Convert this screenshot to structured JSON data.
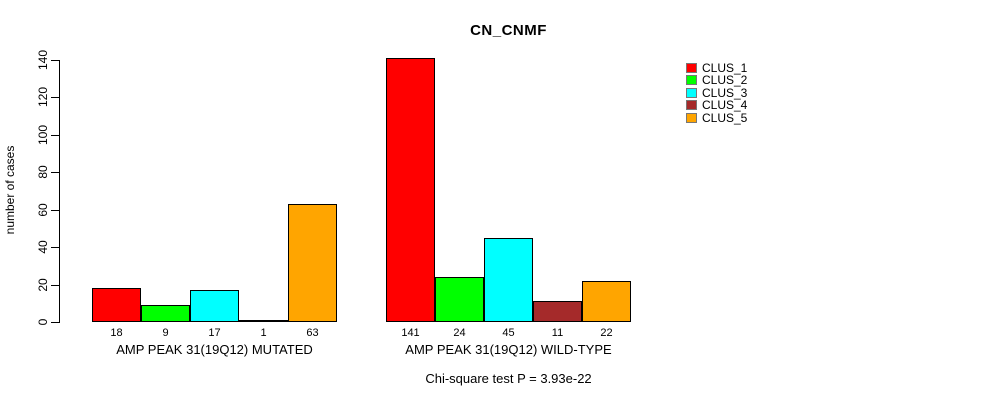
{
  "figure": {
    "title": "CN_CNMF",
    "y_axis_label": "number of cases",
    "annotation": "Chi-square test P = 3.93e-22"
  },
  "chart_data": {
    "type": "bar",
    "title": "CN_CNMF",
    "xlabel": "",
    "ylabel": "number of cases",
    "ylim": [
      0,
      140
    ],
    "yticks": [
      0,
      20,
      40,
      60,
      80,
      100,
      120,
      140
    ],
    "grid": false,
    "legend_position": "top-right",
    "bar_outline_color": "#000000",
    "categories": [
      "AMP PEAK 31(19Q12) MUTATED",
      "AMP PEAK 31(19Q12) WILD-TYPE"
    ],
    "series": [
      {
        "name": "CLUS_1",
        "color": "#FF0000",
        "values": [
          18,
          141
        ]
      },
      {
        "name": "CLUS_2",
        "color": "#00FF00",
        "values": [
          9,
          24
        ]
      },
      {
        "name": "CLUS_3",
        "color": "#00FFFF",
        "values": [
          17,
          45
        ]
      },
      {
        "name": "CLUS_4",
        "color": "#A52A2A",
        "values": [
          1,
          11
        ]
      },
      {
        "name": "CLUS_5",
        "color": "#FFA500",
        "values": [
          63,
          22
        ]
      }
    ],
    "bar_value_labels": [
      [
        18,
        9,
        17,
        1,
        63
      ],
      [
        141,
        24,
        45,
        11,
        22
      ]
    ],
    "annotation": "Chi-square test P = 3.93e-22"
  }
}
